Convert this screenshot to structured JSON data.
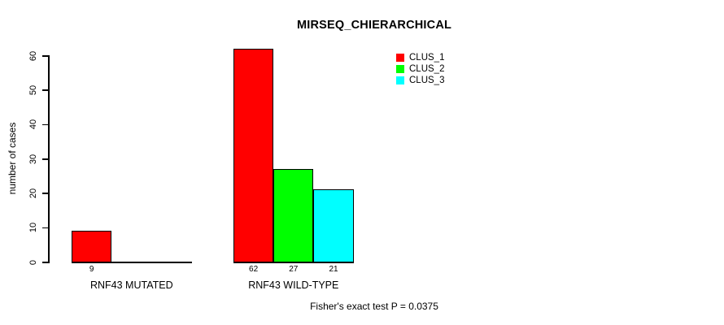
{
  "chart_data": {
    "type": "bar",
    "title": "MIRSEQ_CHIERARCHICAL",
    "ylabel": "number of cases",
    "xlabel": "",
    "categories": [
      "RNF43 MUTATED",
      "RNF43 WILD-TYPE"
    ],
    "series": [
      {
        "name": "CLUS_1",
        "color": "#ff0000",
        "values": [
          9,
          62
        ]
      },
      {
        "name": "CLUS_2",
        "color": "#00ff00",
        "values": [
          0,
          27
        ]
      },
      {
        "name": "CLUS_3",
        "color": "#00ffff",
        "values": [
          0,
          21
        ]
      }
    ],
    "bar_value_labels": [
      [
        "9",
        "",
        ""
      ],
      [
        "62",
        "27",
        "21"
      ]
    ],
    "ylim": [
      0,
      60
    ],
    "yticks": [
      0,
      10,
      20,
      30,
      40,
      50,
      60
    ],
    "grid": false,
    "legend": {
      "position": "top-right",
      "entries": [
        "CLUS_1",
        "CLUS_2",
        "CLUS_3"
      ]
    },
    "annotation": "Fisher's exact test P = 0.0375"
  },
  "colors": {
    "background": "#ffffff",
    "axis": "#000000",
    "text": "#000000",
    "clus_1": "#ff0000",
    "clus_2": "#00ff00",
    "clus_3": "#00ffff"
  }
}
